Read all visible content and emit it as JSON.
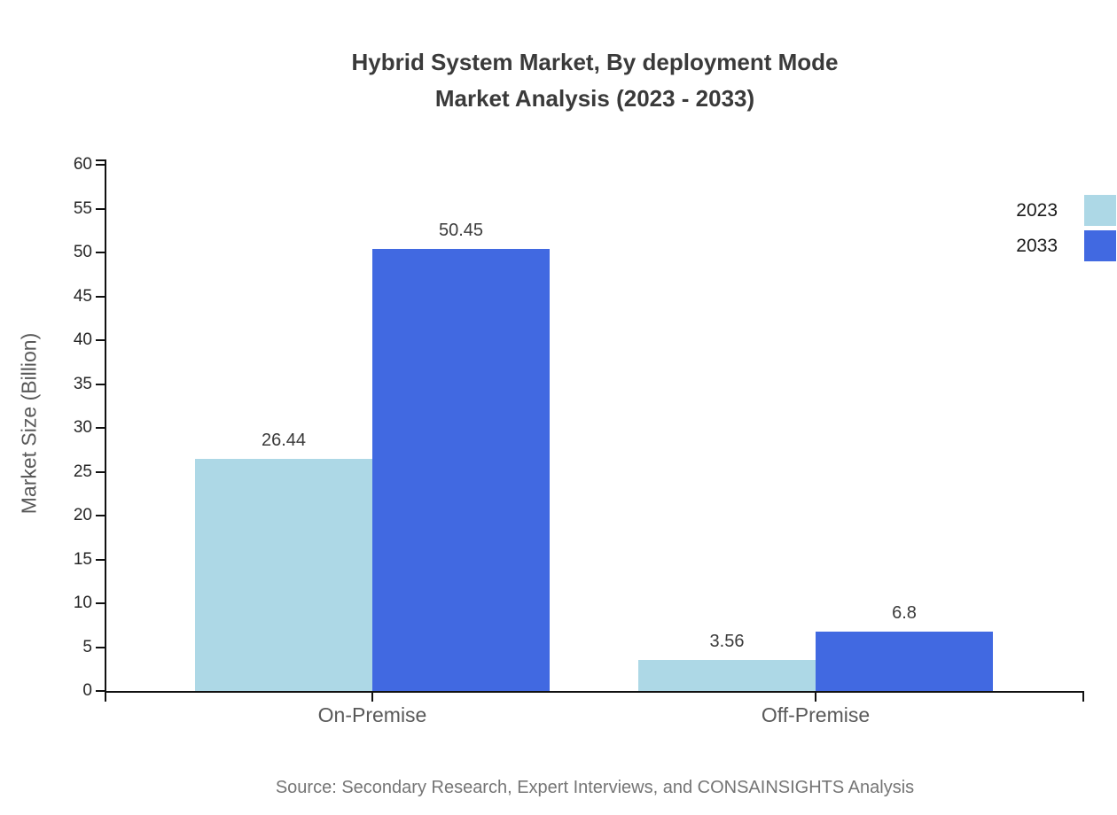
{
  "title": {
    "line1": "Hybrid System Market, By deployment Mode",
    "line2": "Market Analysis (2023 - 2033)"
  },
  "chart_data": {
    "type": "bar",
    "title": "Hybrid System Market, By deployment Mode Market Analysis (2023 - 2033)",
    "ylabel": "Market Size (Billion)",
    "xlabel": "",
    "categories": [
      "On-Premise",
      "Off-Premise"
    ],
    "series": [
      {
        "name": "2023",
        "color": "#ADD8E6",
        "values": [
          26.44,
          3.56
        ]
      },
      {
        "name": "2033",
        "color": "#4169E1",
        "values": [
          50.45,
          6.8
        ]
      }
    ],
    "ylim": [
      0,
      60
    ],
    "ytick_step": 5,
    "ytick_labels": [
      "0",
      "5",
      "10",
      "15",
      "20",
      "25",
      "30",
      "35",
      "40",
      "45",
      "50",
      "55",
      "60"
    ],
    "grid": false,
    "legend_position": "top-right",
    "value_labels_shown": true
  },
  "source": "Source: Secondary Research, Expert Interviews, and CONSAINSIGHTS Analysis",
  "colors": {
    "axis": "#111111",
    "title_text": "#3a3a3a",
    "tick_label": "#262626",
    "category_label": "#595959",
    "ylabel_text": "#595959",
    "source_text": "#757575",
    "series_2023": "#ADD8E6",
    "series_2033": "#4169E1"
  }
}
